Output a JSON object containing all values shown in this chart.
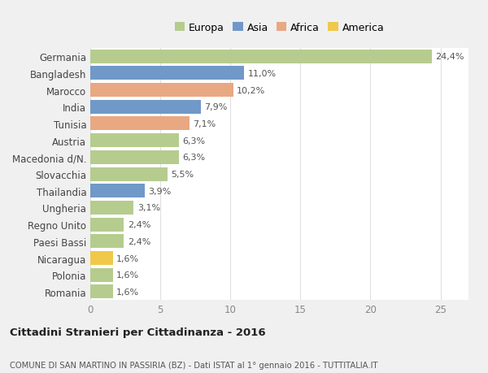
{
  "categories": [
    "Romania",
    "Polonia",
    "Nicaragua",
    "Paesi Bassi",
    "Regno Unito",
    "Ungheria",
    "Thailandia",
    "Slovacchia",
    "Macedonia d/N.",
    "Austria",
    "Tunisia",
    "India",
    "Marocco",
    "Bangladesh",
    "Germania"
  ],
  "values": [
    1.6,
    1.6,
    1.6,
    2.4,
    2.4,
    3.1,
    3.9,
    5.5,
    6.3,
    6.3,
    7.1,
    7.9,
    10.2,
    11.0,
    24.4
  ],
  "labels": [
    "1,6%",
    "1,6%",
    "1,6%",
    "2,4%",
    "2,4%",
    "3,1%",
    "3,9%",
    "5,5%",
    "6,3%",
    "6,3%",
    "7,1%",
    "7,9%",
    "10,2%",
    "11,0%",
    "24,4%"
  ],
  "continents": [
    "Europa",
    "Europa",
    "America",
    "Europa",
    "Europa",
    "Europa",
    "Asia",
    "Europa",
    "Europa",
    "Europa",
    "Africa",
    "Asia",
    "Africa",
    "Asia",
    "Europa"
  ],
  "colors": {
    "Europa": "#b5cc8e",
    "Asia": "#7098c8",
    "Africa": "#e8a882",
    "America": "#f0c84a"
  },
  "legend_order": [
    "Europa",
    "Asia",
    "Africa",
    "America"
  ],
  "title": "Cittadini Stranieri per Cittadinanza - 2016",
  "subtitle": "COMUNE DI SAN MARTINO IN PASSIRIA (BZ) - Dati ISTAT al 1° gennaio 2016 - TUTTITALIA.IT",
  "xlim": [
    0,
    27
  ],
  "xticks": [
    0,
    5,
    10,
    15,
    20,
    25
  ],
  "bg_color": "#f0f0f0",
  "plot_bg_color": "#ffffff",
  "grid_color": "#e0e0e0"
}
